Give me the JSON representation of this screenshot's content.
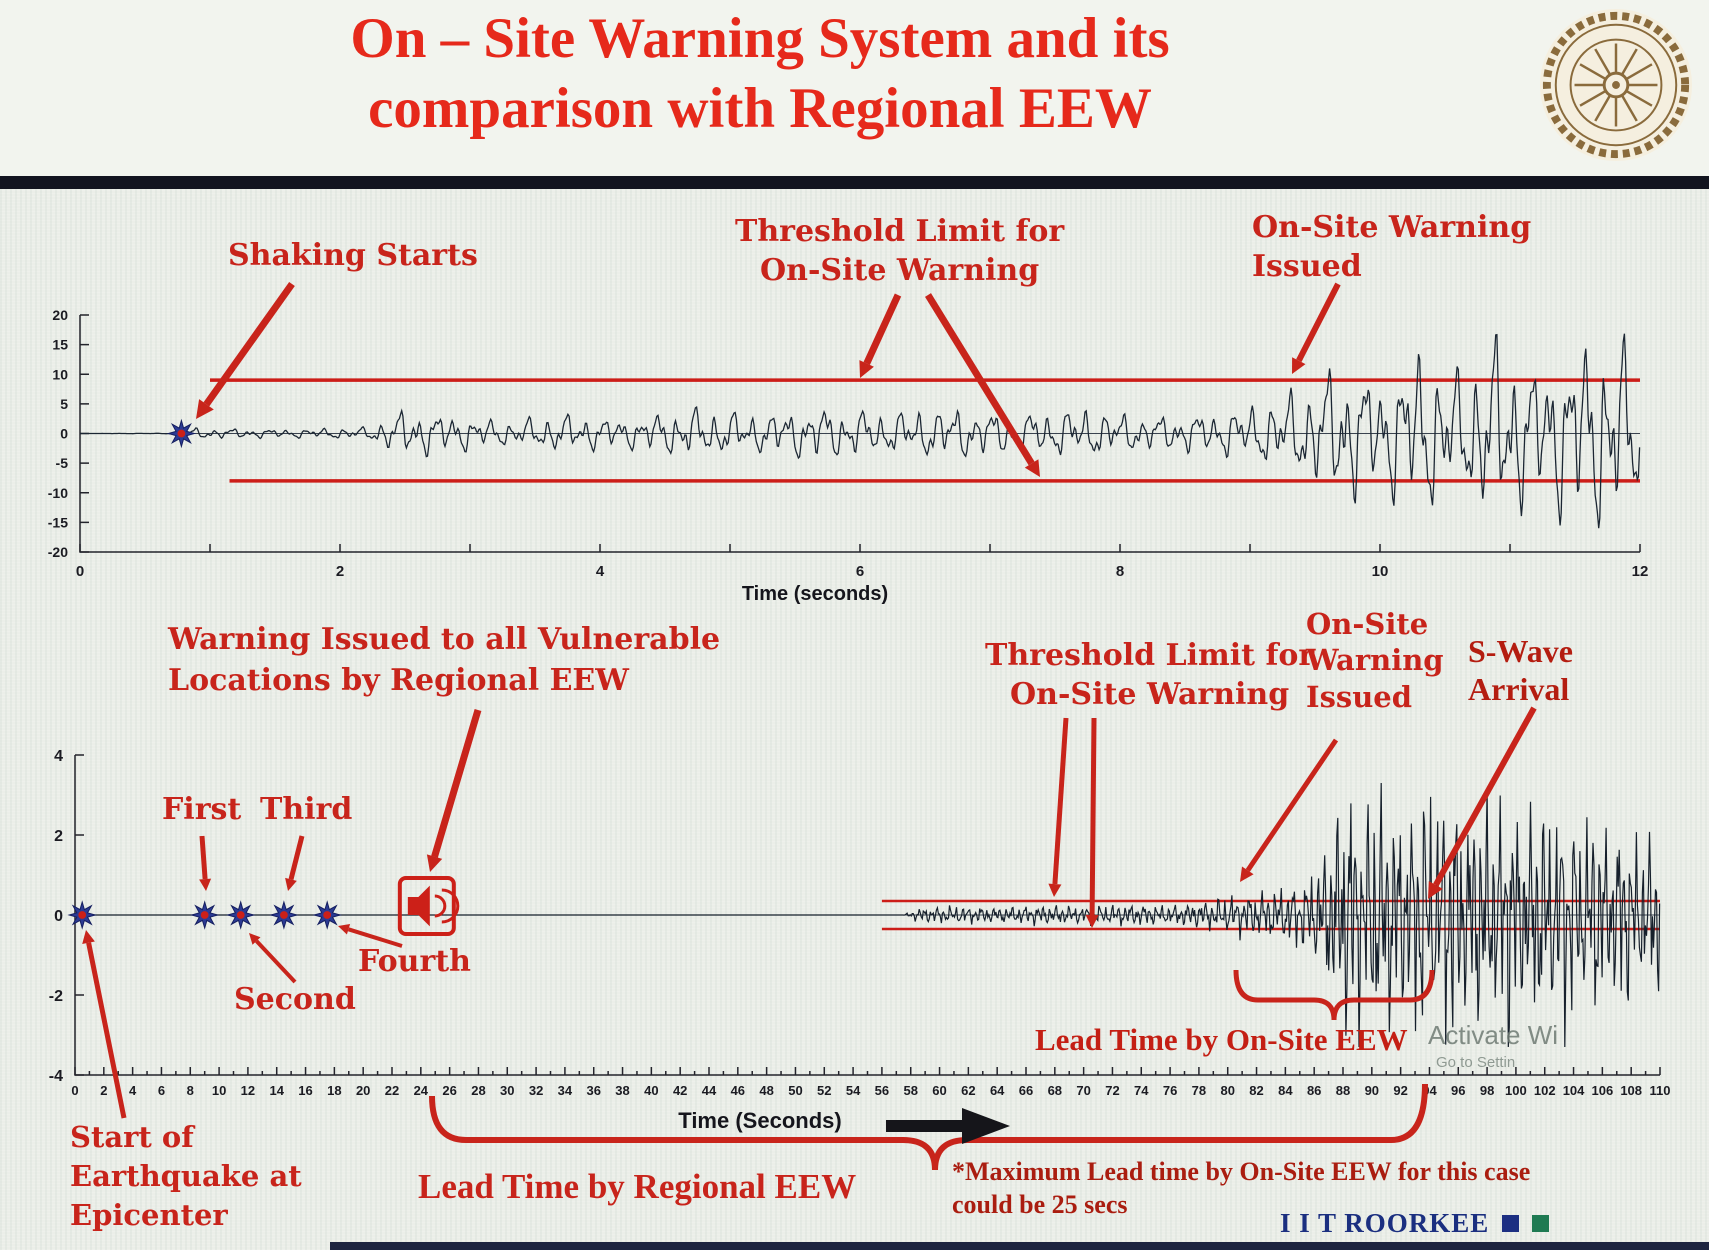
{
  "slide": {
    "title": "On – Site Warning System and its\ncomparison with Regional EEW",
    "brand": "I I T ROORKEE",
    "watermark_top": "Activate Wi",
    "watermark_bottom": "Go to Settin"
  },
  "colors": {
    "annotation_red": "#c8241b",
    "threshold_red": "#cc1d18",
    "waveform_navy": "#1b2633",
    "title_red": "#e6291b",
    "brand_navy": "#1b2f80",
    "marker_blue": "#2b3a94",
    "marker_core_red": "#cc2018"
  },
  "chart_data": [
    {
      "id": "onsite-acceleration-record",
      "type": "line",
      "title": "",
      "xlabel": "Time (seconds)",
      "ylabel": "",
      "xlim": [
        0,
        12
      ],
      "ylim": [
        -20,
        20
      ],
      "xticks": [
        0,
        2,
        4,
        6,
        8,
        10,
        12
      ],
      "yticks": [
        20,
        15,
        10,
        5,
        0,
        -5,
        -10,
        -15,
        -20
      ],
      "grid": false,
      "legend": "none",
      "threshold_upper": 9,
      "threshold_lower": -8,
      "threshold_start_x": 1.0,
      "events": {
        "shaking_starts_x": 0.78,
        "onsite_warning_issued_x": 9.3
      },
      "amplitude_envelope": [
        [
          0,
          0
        ],
        [
          0.75,
          0.05
        ],
        [
          0.85,
          0.9
        ],
        [
          1.6,
          0.7
        ],
        [
          2.2,
          1.0
        ],
        [
          2.5,
          4.0
        ],
        [
          2.9,
          3.0
        ],
        [
          3.3,
          2.0
        ],
        [
          3.7,
          3.2
        ],
        [
          4.2,
          2.4
        ],
        [
          4.7,
          4.2
        ],
        [
          5.2,
          3.2
        ],
        [
          5.7,
          4.4
        ],
        [
          6.2,
          3.4
        ],
        [
          6.7,
          4.4
        ],
        [
          7.2,
          3.2
        ],
        [
          7.7,
          4.2
        ],
        [
          8.2,
          2.8
        ],
        [
          8.7,
          3.4
        ],
        [
          9.1,
          5.0
        ],
        [
          9.45,
          8.0
        ],
        [
          9.7,
          12.0
        ],
        [
          10.0,
          9.0
        ],
        [
          10.3,
          14.0
        ],
        [
          10.6,
          10.0
        ],
        [
          10.9,
          16.0
        ],
        [
          11.2,
          11.0
        ],
        [
          11.5,
          15.0
        ],
        [
          11.8,
          17.0
        ],
        [
          12,
          12.0
        ]
      ],
      "labels": {
        "shaking_starts": "Shaking Starts",
        "threshold_limit": "Threshold Limit for\nOn-Site Warning",
        "warning_issued": "On-Site Warning\nIssued"
      }
    },
    {
      "id": "regional-vs-onsite-comparison",
      "type": "line",
      "title": "",
      "xlabel": "Time (Seconds)",
      "ylabel": "",
      "xlim": [
        0,
        110
      ],
      "ylim": [
        -4,
        4
      ],
      "xtick_step": 2,
      "yticks": [
        4,
        2,
        0,
        -2,
        -4
      ],
      "grid": false,
      "legend": "none",
      "threshold_upper": 0.35,
      "threshold_lower": -0.35,
      "threshold_start_x": 56,
      "p_wave_detections": [
        {
          "name": "epicenter",
          "x": 0.5
        },
        {
          "name": "First",
          "x": 9
        },
        {
          "name": "Second",
          "x": 11.5
        },
        {
          "name": "Third",
          "x": 14.5
        },
        {
          "name": "Fourth",
          "x": 17.5
        }
      ],
      "regional_warning_issued_x": 24,
      "onsite_warning_issued_x": 80,
      "s_wave_arrival_x": 93,
      "lead_time_onsite_span": [
        80.5,
        94
      ],
      "lead_time_regional_span": [
        24.5,
        93.5
      ],
      "amplitude_envelope": [
        [
          0,
          0
        ],
        [
          57.5,
          0
        ],
        [
          58.5,
          0.14
        ],
        [
          61,
          0.18
        ],
        [
          64,
          0.15
        ],
        [
          67,
          0.2
        ],
        [
          70,
          0.17
        ],
        [
          73,
          0.22
        ],
        [
          76,
          0.19
        ],
        [
          78,
          0.26
        ],
        [
          80,
          0.38
        ],
        [
          82,
          0.45
        ],
        [
          84,
          0.55
        ],
        [
          85.5,
          0.75
        ],
        [
          86.5,
          1.1
        ],
        [
          87.5,
          2.0
        ],
        [
          88.5,
          2.7
        ],
        [
          89.5,
          2.1
        ],
        [
          90.5,
          2.8
        ],
        [
          91.5,
          2.2
        ],
        [
          92.5,
          1.9
        ],
        [
          93.5,
          2.7
        ],
        [
          94.5,
          2.1
        ],
        [
          95.5,
          2.8
        ],
        [
          96.5,
          1.9
        ],
        [
          97.5,
          2.5
        ],
        [
          98.5,
          2.0
        ],
        [
          99.5,
          2.7
        ],
        [
          100.5,
          1.8
        ],
        [
          101.5,
          2.4
        ],
        [
          102.5,
          1.9
        ],
        [
          103.5,
          2.5
        ],
        [
          104.5,
          1.6
        ],
        [
          105.5,
          2.2
        ],
        [
          106.5,
          1.5
        ],
        [
          107.5,
          2.0
        ],
        [
          108.5,
          1.4
        ],
        [
          110,
          1.7
        ]
      ],
      "labels": {
        "regional_warning": "Warning Issued to all Vulnerable\nLocations by Regional EEW",
        "first": "First",
        "second": "Second",
        "third": "Third",
        "fourth": "Fourth",
        "threshold_limit": "Threshold Limit for\nOn-Site Warning",
        "onsite_warning": "On-Site\nWarning\nIssued",
        "s_wave": "S-Wave\nArrival",
        "lead_onsite": "Lead Time by On-Site EEW",
        "lead_regional": "Lead Time by Regional EEW",
        "start_epicenter": "Start of\nEarthquake at\nEpicenter",
        "note": "*Maximum Lead time by On-Site EEW for this case\ncould be 25 secs"
      }
    }
  ]
}
